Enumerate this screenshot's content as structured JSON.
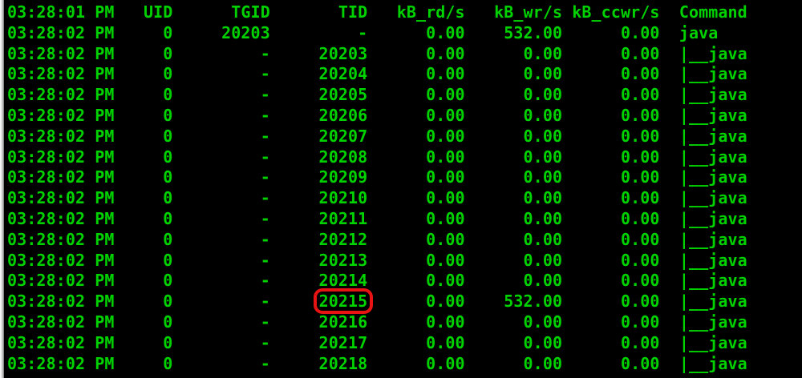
{
  "colors": {
    "background": "#000000",
    "foreground": "#00d200",
    "highlight_box": "#e81414",
    "scrollbar": "#c8c8c8"
  },
  "terminal": {
    "header": [
      "03:28:01 PM",
      "UID",
      "TGID",
      "TID",
      "kB_rd/s",
      "kB_wr/s",
      "kB_ccwr/s",
      "Command"
    ],
    "rows": [
      [
        "03:28:02 PM",
        "0",
        "20203",
        "-",
        "0.00",
        "532.00",
        "0.00",
        "java"
      ],
      [
        "03:28:02 PM",
        "0",
        "-",
        "20203",
        "0.00",
        "0.00",
        "0.00",
        "|__java"
      ],
      [
        "03:28:02 PM",
        "0",
        "-",
        "20204",
        "0.00",
        "0.00",
        "0.00",
        "|__java"
      ],
      [
        "03:28:02 PM",
        "0",
        "-",
        "20205",
        "0.00",
        "0.00",
        "0.00",
        "|__java"
      ],
      [
        "03:28:02 PM",
        "0",
        "-",
        "20206",
        "0.00",
        "0.00",
        "0.00",
        "|__java"
      ],
      [
        "03:28:02 PM",
        "0",
        "-",
        "20207",
        "0.00",
        "0.00",
        "0.00",
        "|__java"
      ],
      [
        "03:28:02 PM",
        "0",
        "-",
        "20208",
        "0.00",
        "0.00",
        "0.00",
        "|__java"
      ],
      [
        "03:28:02 PM",
        "0",
        "-",
        "20209",
        "0.00",
        "0.00",
        "0.00",
        "|__java"
      ],
      [
        "03:28:02 PM",
        "0",
        "-",
        "20210",
        "0.00",
        "0.00",
        "0.00",
        "|__java"
      ],
      [
        "03:28:02 PM",
        "0",
        "-",
        "20211",
        "0.00",
        "0.00",
        "0.00",
        "|__java"
      ],
      [
        "03:28:02 PM",
        "0",
        "-",
        "20212",
        "0.00",
        "0.00",
        "0.00",
        "|__java"
      ],
      [
        "03:28:02 PM",
        "0",
        "-",
        "20213",
        "0.00",
        "0.00",
        "0.00",
        "|__java"
      ],
      [
        "03:28:02 PM",
        "0",
        "-",
        "20214",
        "0.00",
        "0.00",
        "0.00",
        "|__java"
      ],
      [
        "03:28:02 PM",
        "0",
        "-",
        "20215",
        "0.00",
        "532.00",
        "0.00",
        "|__java"
      ],
      [
        "03:28:02 PM",
        "0",
        "-",
        "20216",
        "0.00",
        "0.00",
        "0.00",
        "|__java"
      ],
      [
        "03:28:02 PM",
        "0",
        "-",
        "20217",
        "0.00",
        "0.00",
        "0.00",
        "|__java"
      ],
      [
        "03:28:02 PM",
        "0",
        "-",
        "20218",
        "0.00",
        "0.00",
        "0.00",
        "|__java"
      ]
    ],
    "highlight": {
      "row_index": 13,
      "col_index": 3,
      "value": "20215"
    }
  }
}
